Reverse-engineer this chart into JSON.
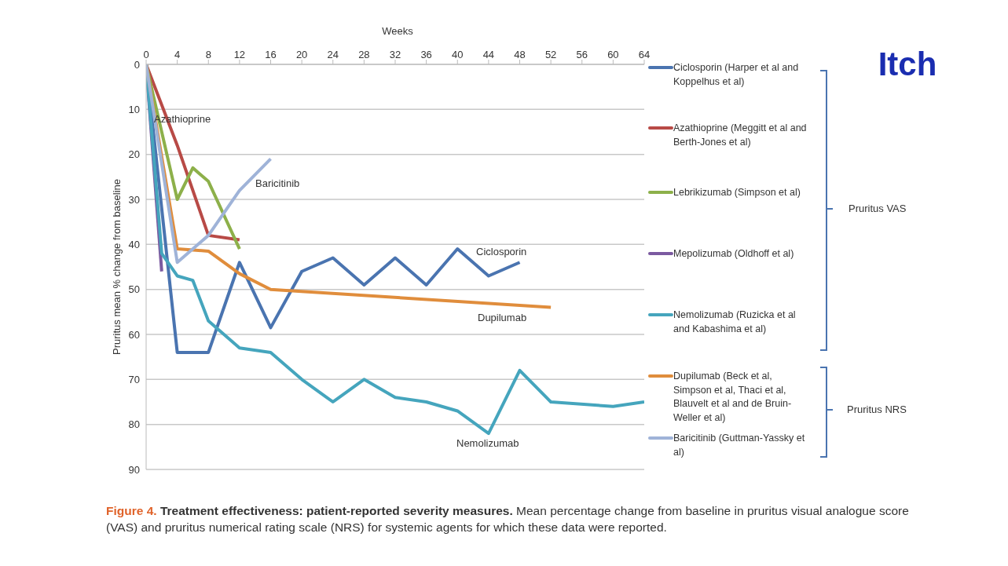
{
  "chart_data": {
    "type": "line",
    "title": "Itch",
    "xlabel": "Weeks",
    "ylabel": "Pruritus mean % change from baseline",
    "xlim": [
      0,
      64
    ],
    "xticks": [
      0,
      4,
      8,
      12,
      16,
      20,
      24,
      28,
      32,
      36,
      40,
      44,
      48,
      52,
      56,
      60,
      64
    ],
    "ylim": [
      90,
      0
    ],
    "yticks": [
      0,
      10,
      20,
      30,
      40,
      50,
      60,
      70,
      80,
      90
    ],
    "grid": "y",
    "legend": "right",
    "marker": "none",
    "line_style": "solid",
    "series": [
      {
        "name": "Ciclosporin (Harper et al and Koppelhus et al)",
        "color": "#4a74b0",
        "x": [
          0,
          4,
          8,
          12,
          16,
          20,
          24,
          28,
          32,
          36,
          40,
          44,
          48
        ],
        "values": [
          0,
          64,
          64,
          44,
          58.5,
          46,
          43,
          49,
          43,
          49,
          41,
          47,
          44
        ]
      },
      {
        "name": "Azathioprine (Meggitt et al and Berth-Jones et al)",
        "color": "#b84a46",
        "x": [
          0,
          4,
          8,
          12
        ],
        "values": [
          0,
          18,
          38,
          39
        ]
      },
      {
        "name": "Lebrikizumab (Simpson et al)",
        "color": "#8db04a",
        "x": [
          0,
          4,
          6,
          8,
          12
        ],
        "values": [
          0,
          30,
          23,
          26,
          41
        ]
      },
      {
        "name": "Mepolizumab (Oldhoff et al)",
        "color": "#7b5aa0",
        "x": [
          0,
          2
        ],
        "values": [
          0,
          46
        ]
      },
      {
        "name": "Nemolizumab (Ruzicka et al and Kabashima et al)",
        "color": "#45a5bd",
        "x": [
          0,
          2,
          4,
          6,
          8,
          12,
          16,
          20,
          24,
          28,
          32,
          36,
          40,
          44,
          48,
          52,
          60,
          64
        ],
        "values": [
          0,
          42,
          47,
          48,
          57,
          63,
          64,
          70,
          75,
          70,
          74,
          75,
          77,
          82,
          68,
          75,
          76,
          75
        ]
      },
      {
        "name": "Dupilumab (Beck et al, Simpson et al, Thaci et al, Blauvelt et al and de Bruin-Weller et al)",
        "color": "#e08d3c",
        "x": [
          0,
          4,
          8,
          12,
          16,
          52
        ],
        "values": [
          0,
          41,
          41.5,
          46.5,
          50,
          54
        ]
      },
      {
        "name": "Baricitinib (Guttman-Yassky et al)",
        "color": "#9fb3d8",
        "x": [
          0,
          4,
          8,
          12,
          16
        ],
        "values": [
          0,
          44,
          38,
          28,
          21
        ]
      }
    ],
    "annotations": [
      "Azathioprine",
      "Baricitinib",
      "Ciclosporin",
      "Dupilumab",
      "Nemolizumab",
      "Pruritus VAS",
      "Pruritus NRS",
      "Figure 4.",
      "Treatment effectiveness: patient-reported severity measures.",
      "Mean percentage change from baseline in pruritus visual analogue score (VAS) and pruritus numerical rating scale (NRS) for systemic agents for which these data were reported."
    ]
  }
}
